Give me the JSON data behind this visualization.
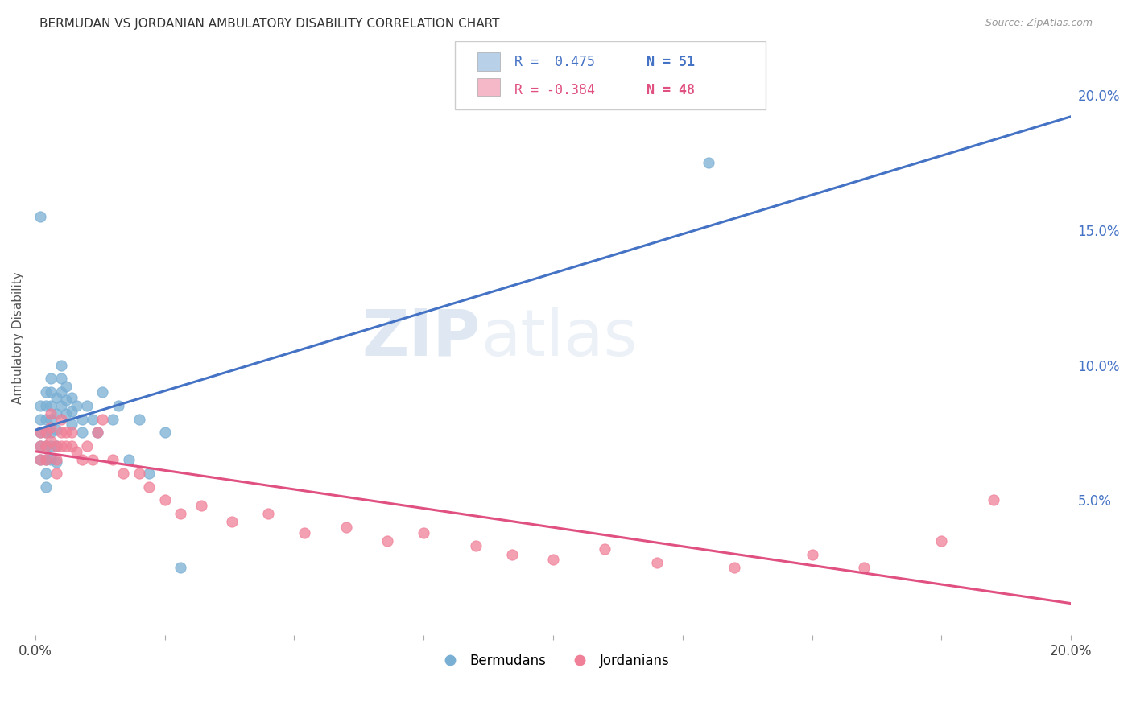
{
  "title": "BERMUDAN VS JORDANIAN AMBULATORY DISABILITY CORRELATION CHART",
  "source": "Source: ZipAtlas.com",
  "ylabel": "Ambulatory Disability",
  "xlim": [
    0.0,
    0.2
  ],
  "ylim": [
    0.0,
    0.22
  ],
  "xtick_values": [
    0.0,
    0.025,
    0.05,
    0.075,
    0.1,
    0.125,
    0.15,
    0.175,
    0.2
  ],
  "xtick_labels_show": {
    "0.0": "0.0%",
    "0.20": "20.0%"
  },
  "ytick_values": [
    0.05,
    0.1,
    0.15,
    0.2
  ],
  "ytick_labels": [
    "5.0%",
    "10.0%",
    "15.0%",
    "20.0%"
  ],
  "watermark_zip": "ZIP",
  "watermark_atlas": "atlas",
  "bermuda_color": "#7aafd4",
  "jordan_color": "#f08098",
  "bermuda_line_color": "#4472c4",
  "jordan_line_color": "#e05080",
  "trend_line_ext_color": "#c8c8c8",
  "background_color": "#ffffff",
  "grid_color": "#c8d4e8",
  "legend_box1_color": "#b8d0e8",
  "legend_box2_color": "#f4b8c8",
  "legend_text_color": "#4472c4",
  "legend_r1": "R =  0.475",
  "legend_n1": "N = 51",
  "legend_r2": "R = -0.384",
  "legend_n2": "N = 48",
  "bermuda_scatter_x": [
    0.001,
    0.001,
    0.001,
    0.001,
    0.001,
    0.002,
    0.002,
    0.002,
    0.002,
    0.002,
    0.002,
    0.002,
    0.002,
    0.003,
    0.003,
    0.003,
    0.003,
    0.003,
    0.003,
    0.003,
    0.004,
    0.004,
    0.004,
    0.004,
    0.004,
    0.005,
    0.005,
    0.005,
    0.005,
    0.006,
    0.006,
    0.006,
    0.007,
    0.007,
    0.007,
    0.008,
    0.009,
    0.009,
    0.01,
    0.011,
    0.012,
    0.013,
    0.015,
    0.016,
    0.018,
    0.02,
    0.022,
    0.025,
    0.028,
    0.001,
    0.13
  ],
  "bermuda_scatter_y": [
    0.085,
    0.08,
    0.075,
    0.07,
    0.065,
    0.09,
    0.085,
    0.08,
    0.075,
    0.07,
    0.065,
    0.06,
    0.055,
    0.095,
    0.09,
    0.085,
    0.08,
    0.075,
    0.07,
    0.065,
    0.088,
    0.082,
    0.076,
    0.07,
    0.064,
    0.1,
    0.095,
    0.09,
    0.085,
    0.092,
    0.087,
    0.082,
    0.088,
    0.083,
    0.078,
    0.085,
    0.08,
    0.075,
    0.085,
    0.08,
    0.075,
    0.09,
    0.08,
    0.085,
    0.065,
    0.08,
    0.06,
    0.075,
    0.025,
    0.155,
    0.175
  ],
  "jordan_scatter_x": [
    0.001,
    0.001,
    0.001,
    0.002,
    0.002,
    0.002,
    0.003,
    0.003,
    0.003,
    0.004,
    0.004,
    0.004,
    0.005,
    0.005,
    0.005,
    0.006,
    0.006,
    0.007,
    0.007,
    0.008,
    0.009,
    0.01,
    0.011,
    0.012,
    0.013,
    0.015,
    0.017,
    0.02,
    0.022,
    0.025,
    0.028,
    0.032,
    0.038,
    0.045,
    0.052,
    0.06,
    0.068,
    0.075,
    0.085,
    0.092,
    0.1,
    0.11,
    0.12,
    0.135,
    0.15,
    0.16,
    0.175,
    0.185
  ],
  "jordan_scatter_y": [
    0.075,
    0.07,
    0.065,
    0.075,
    0.07,
    0.065,
    0.082,
    0.077,
    0.072,
    0.07,
    0.065,
    0.06,
    0.08,
    0.075,
    0.07,
    0.075,
    0.07,
    0.075,
    0.07,
    0.068,
    0.065,
    0.07,
    0.065,
    0.075,
    0.08,
    0.065,
    0.06,
    0.06,
    0.055,
    0.05,
    0.045,
    0.048,
    0.042,
    0.045,
    0.038,
    0.04,
    0.035,
    0.038,
    0.033,
    0.03,
    0.028,
    0.032,
    0.027,
    0.025,
    0.03,
    0.025,
    0.035,
    0.05
  ]
}
